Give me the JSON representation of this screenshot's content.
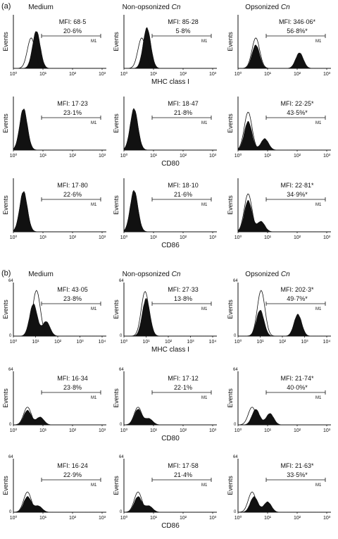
{
  "figure": {
    "panels": [
      {
        "label": "(a)",
        "column_titles": [
          {
            "text": "Medium",
            "italic": ""
          },
          {
            "text": "Non-opsonized ",
            "italic": "Cn"
          },
          {
            "text": "Opsonized ",
            "italic": "Cn"
          }
        ]
      },
      {
        "label": "(b)",
        "column_titles": [
          {
            "text": "Medium",
            "italic": ""
          },
          {
            "text": "Non-opsonized ",
            "italic": "Cn"
          },
          {
            "text": "Opsonized ",
            "italic": "Cn"
          }
        ]
      }
    ],
    "colors": {
      "filled_histogram": "#111111",
      "open_histogram": "#111111",
      "background": "#ffffff"
    }
  },
  "chart_data": [
    {
      "type": "area",
      "panel": "(a)",
      "row": 0,
      "col": 0,
      "xlabel": "",
      "ylabel": "Events",
      "y_ticks": [],
      "x_ticks": [
        "10⁰",
        "10¹",
        "10²",
        "10³"
      ],
      "x_scale": "log",
      "xlim": [
        1,
        1000
      ],
      "gate": "M1",
      "annotations": [
        "MFI: 68·5",
        "20·6%"
      ],
      "filled_peaks": [
        {
          "x": 6,
          "h": 0.72
        }
      ],
      "open_peaks": [
        {
          "x": 4,
          "h": 0.6
        }
      ]
    },
    {
      "type": "area",
      "panel": "(a)",
      "row": 0,
      "col": 1,
      "xlabel": "",
      "ylabel": "Events",
      "y_ticks": [],
      "x_ticks": [
        "10⁰",
        "10¹",
        "10²",
        "10³"
      ],
      "x_scale": "log",
      "xlim": [
        1,
        1000
      ],
      "gate": "M1",
      "annotations": [
        "MFI: 85·28",
        "5·8%"
      ],
      "filled_peaks": [
        {
          "x": 6,
          "h": 0.78
        }
      ],
      "open_peaks": [
        {
          "x": 4,
          "h": 0.6
        }
      ]
    },
    {
      "type": "area",
      "panel": "(a)",
      "row": 0,
      "col": 2,
      "xlabel": "MHC class I",
      "ylabel": "Events",
      "y_ticks": [],
      "x_ticks": [
        "10⁰",
        "10¹",
        "10²",
        "10³"
      ],
      "x_scale": "log",
      "xlim": [
        1,
        1000
      ],
      "gate": "M1",
      "annotations": [
        "MFI: 346·06*",
        "56·8%*"
      ],
      "filled_peaks": [
        {
          "x": 4,
          "h": 0.45
        },
        {
          "x": 120,
          "h": 0.3
        }
      ],
      "open_peaks": [
        {
          "x": 4,
          "h": 0.6
        }
      ]
    },
    {
      "type": "area",
      "panel": "(a)",
      "row": 1,
      "col": 0,
      "xlabel": "",
      "ylabel": "Events",
      "y_ticks": [],
      "x_ticks": [
        "10⁰",
        "10¹",
        "10²",
        "10³"
      ],
      "x_scale": "log",
      "xlim": [
        1,
        1000
      ],
      "gate": "M1",
      "annotations": [
        "MFI: 17·23",
        "23·1%"
      ],
      "filled_peaks": [
        {
          "x": 2.2,
          "h": 0.8
        }
      ],
      "open_peaks": [
        {
          "x": 2.2,
          "h": 0.75
        }
      ]
    },
    {
      "type": "area",
      "panel": "(a)",
      "row": 1,
      "col": 1,
      "xlabel": "",
      "ylabel": "Events",
      "y_ticks": [],
      "x_ticks": [
        "10⁰",
        "10¹",
        "10²",
        "10³"
      ],
      "x_scale": "log",
      "xlim": [
        1,
        1000
      ],
      "gate": "M1",
      "annotations": [
        "MFI: 18·47",
        "21·8%"
      ],
      "filled_peaks": [
        {
          "x": 2.2,
          "h": 0.8
        }
      ],
      "open_peaks": [
        {
          "x": 2.2,
          "h": 0.75
        }
      ]
    },
    {
      "type": "area",
      "panel": "(a)",
      "row": 1,
      "col": 2,
      "xlabel": "CD80",
      "ylabel": "Events",
      "y_ticks": [],
      "x_ticks": [
        "10⁰",
        "10¹",
        "10²",
        "10³"
      ],
      "x_scale": "log",
      "xlim": [
        1,
        1000
      ],
      "gate": "M1",
      "annotations": [
        "MFI: 22·25*",
        "43·5%*"
      ],
      "filled_peaks": [
        {
          "x": 2.2,
          "h": 0.55
        },
        {
          "x": 8,
          "h": 0.22
        }
      ],
      "open_peaks": [
        {
          "x": 2.2,
          "h": 0.75
        }
      ]
    },
    {
      "type": "area",
      "panel": "(a)",
      "row": 2,
      "col": 0,
      "xlabel": "",
      "ylabel": "Events",
      "y_ticks": [],
      "x_ticks": [
        "10⁰",
        "10¹",
        "10²",
        "10³"
      ],
      "x_scale": "log",
      "xlim": [
        1,
        1000
      ],
      "gate": "M1",
      "annotations": [
        "MFI: 17·80",
        "22·6%"
      ],
      "filled_peaks": [
        {
          "x": 2.2,
          "h": 0.78
        }
      ],
      "open_peaks": [
        {
          "x": 2.2,
          "h": 0.75
        }
      ]
    },
    {
      "type": "area",
      "panel": "(a)",
      "row": 2,
      "col": 1,
      "xlabel": "",
      "ylabel": "Events",
      "y_ticks": [],
      "x_ticks": [
        "10⁰",
        "10¹",
        "10²",
        "10³"
      ],
      "x_scale": "log",
      "xlim": [
        1,
        1000
      ],
      "gate": "M1",
      "annotations": [
        "MFI: 18·10",
        "21·6%"
      ],
      "filled_peaks": [
        {
          "x": 2.2,
          "h": 0.8
        }
      ],
      "open_peaks": [
        {
          "x": 2.2,
          "h": 0.75
        }
      ]
    },
    {
      "type": "area",
      "panel": "(a)",
      "row": 2,
      "col": 2,
      "xlabel": "CD86",
      "ylabel": "Events",
      "y_ticks": [],
      "x_ticks": [
        "10⁰",
        "10¹",
        "10²",
        "10³"
      ],
      "x_scale": "log",
      "xlim": [
        1,
        1000
      ],
      "gate": "M1",
      "annotations": [
        "MFI: 22·81*",
        "34·9%*"
      ],
      "filled_peaks": [
        {
          "x": 2.2,
          "h": 0.6
        },
        {
          "x": 6,
          "h": 0.2
        }
      ],
      "open_peaks": [
        {
          "x": 2.2,
          "h": 0.75
        }
      ]
    },
    {
      "type": "area",
      "panel": "(b)",
      "row": 0,
      "col": 0,
      "xlabel": "",
      "ylabel": "Events",
      "y_ticks": [
        "64",
        "0"
      ],
      "x_ticks": [
        "10⁰",
        "10¹",
        "10²",
        "10³",
        "10⁴"
      ],
      "x_scale": "log",
      "xlim": [
        1,
        10000
      ],
      "gate": "M1",
      "annotations": [
        "MFI: 43·05",
        "23·8%"
      ],
      "filled_peaks": [
        {
          "x": 8,
          "h": 0.62
        },
        {
          "x": 30,
          "h": 0.28
        }
      ],
      "open_peaks": [
        {
          "x": 11,
          "h": 0.9
        }
      ]
    },
    {
      "type": "area",
      "panel": "(b)",
      "row": 0,
      "col": 1,
      "xlabel": "",
      "ylabel": "Events",
      "y_ticks": [
        "64",
        "0"
      ],
      "x_ticks": [
        "10⁰",
        "10¹",
        "10²",
        "10³",
        "10⁴"
      ],
      "x_scale": "log",
      "xlim": [
        1,
        10000
      ],
      "gate": "M1",
      "annotations": [
        "MFI: 27·33",
        "13·8%"
      ],
      "filled_peaks": [
        {
          "x": 10,
          "h": 0.72
        }
      ],
      "open_peaks": [
        {
          "x": 9,
          "h": 0.88
        }
      ]
    },
    {
      "type": "area",
      "panel": "(b)",
      "row": 0,
      "col": 2,
      "xlabel": "MHC class I",
      "ylabel": "Events",
      "y_ticks": [
        "64",
        "0"
      ],
      "x_ticks": [
        "10⁰",
        "10¹",
        "10²",
        "10³",
        "10⁴"
      ],
      "x_scale": "log",
      "xlim": [
        1,
        10000
      ],
      "gate": "M1",
      "annotations": [
        "MFI: 202·3*",
        "49·7%*"
      ],
      "filled_peaks": [
        {
          "x": 10,
          "h": 0.5
        },
        {
          "x": 500,
          "h": 0.42
        }
      ],
      "open_peaks": [
        {
          "x": 11,
          "h": 0.9
        }
      ]
    },
    {
      "type": "area",
      "panel": "(b)",
      "row": 1,
      "col": 0,
      "xlabel": "",
      "ylabel": "Events",
      "y_ticks": [
        "64",
        "0"
      ],
      "x_ticks": [
        "10⁰",
        "10¹",
        "10²",
        "10³"
      ],
      "x_scale": "log",
      "xlim": [
        1,
        1000
      ],
      "gate": "M1",
      "annotations": [
        "MFI: 16·34",
        "23·8%"
      ],
      "filled_peaks": [
        {
          "x": 3,
          "h": 0.28
        },
        {
          "x": 8,
          "h": 0.15
        }
      ],
      "open_peaks": [
        {
          "x": 3,
          "h": 0.35
        }
      ]
    },
    {
      "type": "area",
      "panel": "(b)",
      "row": 1,
      "col": 1,
      "xlabel": "",
      "ylabel": "Events",
      "y_ticks": [
        "64",
        "0"
      ],
      "x_ticks": [
        "10⁰",
        "10¹",
        "10²",
        "10³"
      ],
      "x_scale": "log",
      "xlim": [
        1,
        1000
      ],
      "gate": "M1",
      "annotations": [
        "MFI: 17·12",
        "22·1%"
      ],
      "filled_peaks": [
        {
          "x": 3,
          "h": 0.3
        },
        {
          "x": 7,
          "h": 0.12
        }
      ],
      "open_peaks": [
        {
          "x": 3,
          "h": 0.35
        }
      ]
    },
    {
      "type": "area",
      "panel": "(b)",
      "row": 1,
      "col": 2,
      "xlabel": "CD80",
      "ylabel": "Events",
      "y_ticks": [
        "64",
        "0"
      ],
      "x_ticks": [
        "10⁰",
        "10¹",
        "10²",
        "10³"
      ],
      "x_scale": "log",
      "xlim": [
        1,
        1000
      ],
      "gate": "M1",
      "annotations": [
        "MFI: 21·74*",
        "40·0%*"
      ],
      "filled_peaks": [
        {
          "x": 4,
          "h": 0.3
        },
        {
          "x": 12,
          "h": 0.22
        }
      ],
      "open_peaks": [
        {
          "x": 3,
          "h": 0.35
        }
      ]
    },
    {
      "type": "area",
      "panel": "(b)",
      "row": 2,
      "col": 0,
      "xlabel": "",
      "ylabel": "Events",
      "y_ticks": [
        "64",
        "0"
      ],
      "x_ticks": [
        "10⁰",
        "10¹",
        "10²",
        "10³"
      ],
      "x_scale": "log",
      "xlim": [
        1,
        1000
      ],
      "gate": "M1",
      "annotations": [
        "MFI: 16·24",
        "22·9%"
      ],
      "filled_peaks": [
        {
          "x": 3,
          "h": 0.3
        },
        {
          "x": 7,
          "h": 0.12
        }
      ],
      "open_peaks": [
        {
          "x": 3,
          "h": 0.4
        }
      ]
    },
    {
      "type": "area",
      "panel": "(b)",
      "row": 2,
      "col": 1,
      "xlabel": "",
      "ylabel": "Events",
      "y_ticks": [
        "64",
        "0"
      ],
      "x_ticks": [
        "10⁰",
        "10¹",
        "10²",
        "10³"
      ],
      "x_scale": "log",
      "xlim": [
        1,
        1000
      ],
      "gate": "M1",
      "annotations": [
        "MFI: 17·58",
        "21·4%"
      ],
      "filled_peaks": [
        {
          "x": 3,
          "h": 0.3
        },
        {
          "x": 7,
          "h": 0.12
        }
      ],
      "open_peaks": [
        {
          "x": 3,
          "h": 0.4
        }
      ]
    },
    {
      "type": "area",
      "panel": "(b)",
      "row": 2,
      "col": 2,
      "xlabel": "CD86",
      "ylabel": "Events",
      "y_ticks": [
        "64",
        "0"
      ],
      "x_ticks": [
        "10⁰",
        "10¹",
        "10²",
        "10³"
      ],
      "x_scale": "log",
      "xlim": [
        1,
        1000
      ],
      "gate": "M1",
      "annotations": [
        "MFI: 21·63*",
        "33·5%*"
      ],
      "filled_peaks": [
        {
          "x": 3.5,
          "h": 0.3
        },
        {
          "x": 10,
          "h": 0.2
        }
      ],
      "open_peaks": [
        {
          "x": 3,
          "h": 0.4
        }
      ]
    }
  ]
}
